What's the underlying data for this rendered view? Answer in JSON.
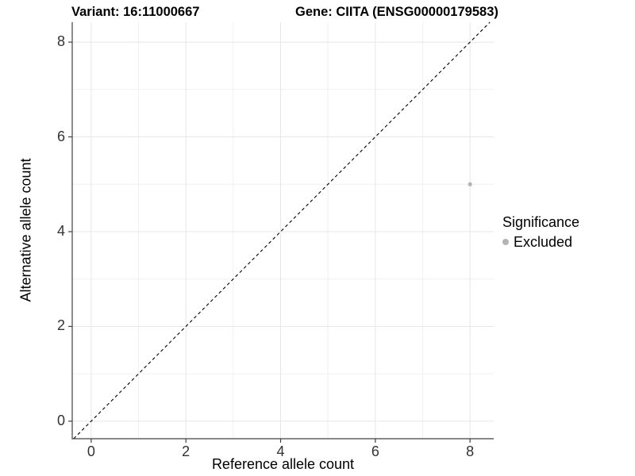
{
  "chart_data": {
    "type": "scatter",
    "titles": {
      "left": "Variant: 16:11000667",
      "right": "Gene: CIITA (ENSG00000179583)"
    },
    "xlabel": "Reference allele count",
    "ylabel": "Alternative allele count",
    "x_ticks": [
      "0",
      "2",
      "4",
      "6",
      "8"
    ],
    "y_ticks": [
      "0",
      "2",
      "4",
      "6",
      "8"
    ],
    "x_tick_values": [
      0,
      2,
      4,
      6,
      8
    ],
    "y_tick_values": [
      0,
      2,
      4,
      6,
      8
    ],
    "minor_tick_values": [
      1,
      3,
      5,
      7
    ],
    "xlim": [
      -0.4,
      8.5
    ],
    "ylim": [
      -0.37,
      8.42
    ],
    "grid": "on",
    "colors": {
      "grid_major": "#e7e7e7",
      "grid_minor": "#f0f0f0",
      "axis": "#404040",
      "dashed_line": "#000000"
    },
    "series": [
      {
        "name": "Excluded",
        "color": "#b4b4b4",
        "points": [
          {
            "x": 8,
            "y": 5
          }
        ]
      }
    ],
    "reference_line": {
      "type": "identity",
      "style": "dashed"
    },
    "legend": {
      "title": "Significance",
      "position": "right",
      "entries": [
        {
          "label": "Excluded",
          "color": "#b4b4b4"
        }
      ]
    }
  }
}
